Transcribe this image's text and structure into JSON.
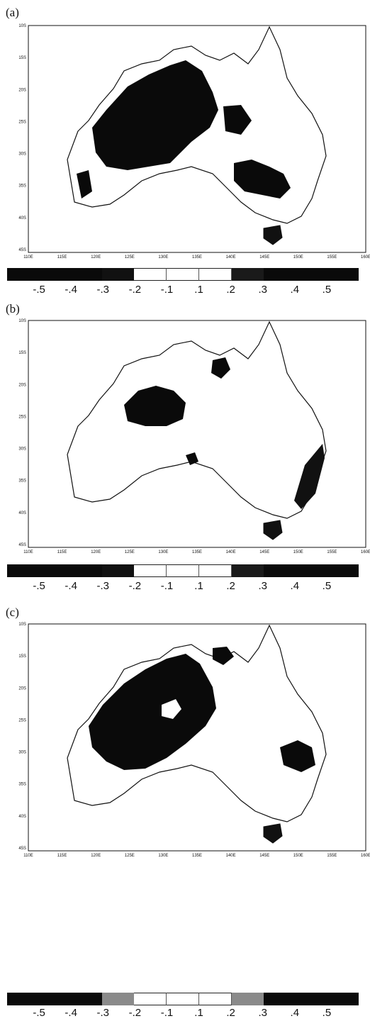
{
  "panels": [
    {
      "label": "(a)",
      "colorbar_ticks": [
        "-.5",
        "-.4",
        "-.3",
        "-.2",
        "-.1",
        ".1",
        ".2",
        ".3",
        ".4",
        ".5"
      ],
      "colorbar_colors": [
        "#0a0a0a",
        "#0a0a0a",
        "#0a0a0a",
        "#111111",
        "#ffffff",
        "#ffffff",
        "#ffffff",
        "#1a1a1a",
        "#0a0a0a",
        "#0a0a0a",
        "#0a0a0a"
      ]
    },
    {
      "label": "(b)",
      "colorbar_ticks": [
        "-.5",
        "-.4",
        "-.3",
        "-.2",
        "-.1",
        ".1",
        ".2",
        ".3",
        ".4",
        ".5"
      ],
      "colorbar_colors": [
        "#0a0a0a",
        "#0a0a0a",
        "#0a0a0a",
        "#111111",
        "#ffffff",
        "#ffffff",
        "#ffffff",
        "#1a1a1a",
        "#0a0a0a",
        "#0a0a0a",
        "#0a0a0a"
      ]
    },
    {
      "label": "(c)",
      "colorbar_ticks": [
        "-.5",
        "-.4",
        "-.3",
        "-.2",
        "-.1",
        ".1",
        ".2",
        ".3",
        ".4",
        ".5"
      ],
      "colorbar_colors": [
        "#0a0a0a",
        "#0a0a0a",
        "#0a0a0a",
        "#8a8a8a",
        "#ffffff",
        "#ffffff",
        "#ffffff",
        "#8a8a8a",
        "#0a0a0a",
        "#0a0a0a",
        "#0a0a0a"
      ]
    }
  ],
  "lat_labels": [
    "10S",
    "15S",
    "20S",
    "25S",
    "30S",
    "35S",
    "40S",
    "45S"
  ],
  "lon_labels": [
    "110E",
    "115E",
    "120E",
    "125E",
    "130E",
    "135E",
    "140E",
    "145E",
    "150E",
    "155E",
    "160E"
  ]
}
